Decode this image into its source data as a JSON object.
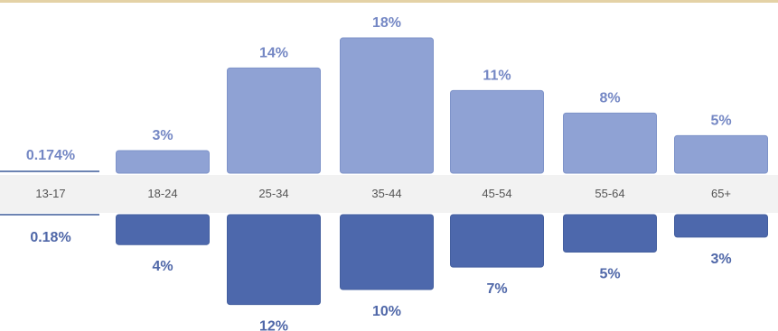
{
  "chart_data": {
    "type": "bar",
    "categories": [
      "13-17",
      "18-24",
      "25-34",
      "35-44",
      "45-54",
      "55-64",
      "65+"
    ],
    "series": [
      {
        "values": [
          0.174,
          3,
          14,
          18,
          11,
          8,
          5
        ],
        "labels": [
          "0.174%",
          "3%",
          "14%",
          "18%",
          "11%",
          "8%",
          "5%"
        ],
        "color": "#8fa2d4"
      },
      {
        "values": [
          0.18,
          4,
          12,
          10,
          7,
          5,
          3
        ],
        "labels": [
          "0.18%",
          "4%",
          "12%",
          "10%",
          "7%",
          "5%",
          "3%"
        ],
        "color": "#4d68ac"
      }
    ],
    "ylim": [
      0,
      18
    ],
    "grid": false,
    "legend": "none"
  }
}
